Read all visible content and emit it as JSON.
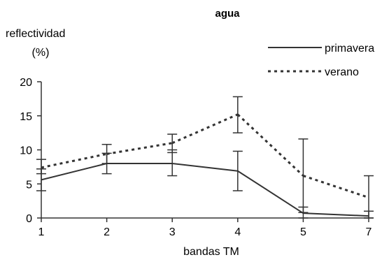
{
  "chart_data": {
    "type": "line",
    "title": "agua",
    "ylabel_line1": "reflectividad",
    "ylabel_line2": "(%)",
    "xlabel": "bandas TM",
    "categories": [
      "1",
      "2",
      "3",
      "4",
      "5",
      "7"
    ],
    "yticks": [
      "0",
      "5",
      "10",
      "15",
      "20"
    ],
    "ylim": [
      0,
      20
    ],
    "grid": false,
    "legend_position": "top-right",
    "series": [
      {
        "name": "primavera",
        "style": "solid",
        "color": "#333333",
        "values": [
          5.6,
          8.0,
          8.0,
          6.9,
          0.7,
          0.3
        ],
        "err_low": [
          4.0,
          6.5,
          6.2,
          4.0,
          0.0,
          0.0
        ],
        "err_high": [
          7.2,
          9.5,
          10.0,
          9.8,
          1.6,
          1.0
        ]
      },
      {
        "name": "verano",
        "style": "dashed",
        "color": "#333333",
        "values": [
          7.4,
          9.4,
          11.0,
          15.2,
          6.2,
          3.0
        ],
        "err_low": [
          6.5,
          8.0,
          9.6,
          12.5,
          0.8,
          0.0
        ],
        "err_high": [
          8.6,
          10.8,
          12.3,
          17.8,
          11.6,
          6.2
        ]
      }
    ]
  }
}
